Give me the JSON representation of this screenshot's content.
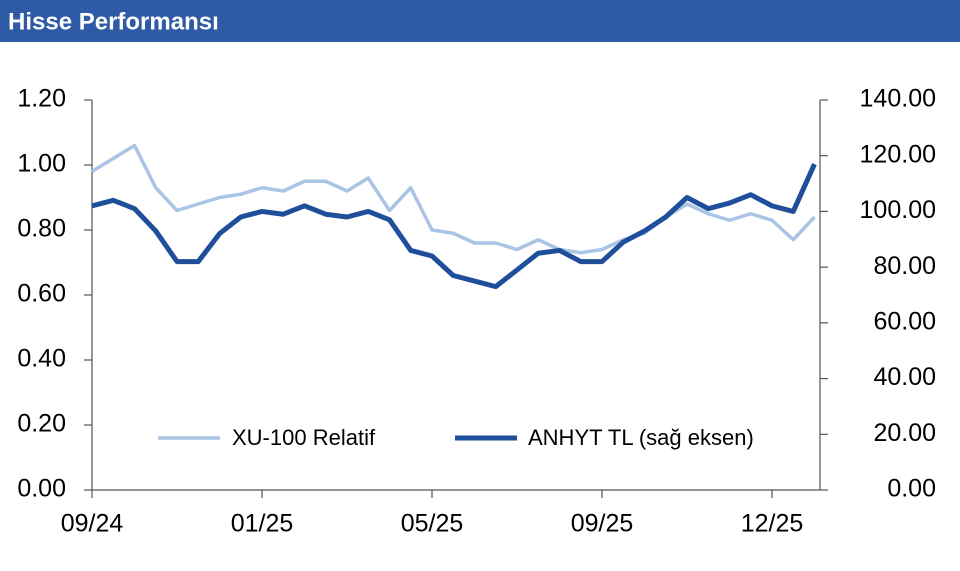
{
  "header": {
    "title": "Hisse Performansı"
  },
  "chart_data": {
    "type": "line",
    "categories": [
      "09/24",
      null,
      null,
      null,
      null,
      null,
      null,
      null,
      "01/25",
      null,
      null,
      null,
      null,
      null,
      null,
      null,
      "05/25",
      null,
      null,
      null,
      null,
      null,
      null,
      null,
      "09/25",
      null,
      null,
      null,
      null,
      null,
      null,
      null,
      "12/25",
      null,
      null
    ],
    "series": [
      {
        "name": "XU-100 Relatif",
        "color": "#a9c4e4",
        "axis": "y",
        "values": [
          0.98,
          1.02,
          1.06,
          0.93,
          0.86,
          0.88,
          0.9,
          0.91,
          0.93,
          0.92,
          0.95,
          0.95,
          0.92,
          0.96,
          0.86,
          0.93,
          0.8,
          0.79,
          0.76,
          0.76,
          0.74,
          0.77,
          0.74,
          0.73,
          0.74,
          0.77,
          0.79,
          0.84,
          0.88,
          0.85,
          0.83,
          0.85,
          0.83,
          0.77,
          0.84
        ]
      },
      {
        "name": "ANHYT TL (sağ eksen)",
        "color": "#1f4e9a",
        "axis": "y2",
        "values": [
          102,
          104,
          101,
          93,
          82,
          82,
          92,
          98,
          100,
          99,
          102,
          99,
          98,
          100,
          97,
          86,
          84,
          77,
          75,
          73,
          79,
          85,
          86,
          82,
          82,
          89,
          93,
          98,
          105,
          101,
          103,
          106,
          102,
          100,
          117
        ]
      }
    ],
    "ylim": [
      0,
      1.2
    ],
    "yticks": [
      {
        "value": 0,
        "label": "0.00"
      },
      {
        "value": 0.2,
        "label": "0.20"
      },
      {
        "value": 0.4,
        "label": "0.40"
      },
      {
        "value": 0.6,
        "label": "0.60"
      },
      {
        "value": 0.8,
        "label": "0.80"
      },
      {
        "value": 1.0,
        "label": "1.00"
      },
      {
        "value": 1.2,
        "label": "1.20"
      }
    ],
    "y2lim": [
      0,
      140
    ],
    "y2ticks": [
      {
        "value": 0,
        "label": "0.00"
      },
      {
        "value": 20,
        "label": "20.00"
      },
      {
        "value": 40,
        "label": "40.00"
      },
      {
        "value": 60,
        "label": "60.00"
      },
      {
        "value": 80,
        "label": "80.00"
      },
      {
        "value": 100,
        "label": "100.00"
      },
      {
        "value": 120,
        "label": "120.00"
      },
      {
        "value": 140,
        "label": "140.00"
      }
    ]
  }
}
